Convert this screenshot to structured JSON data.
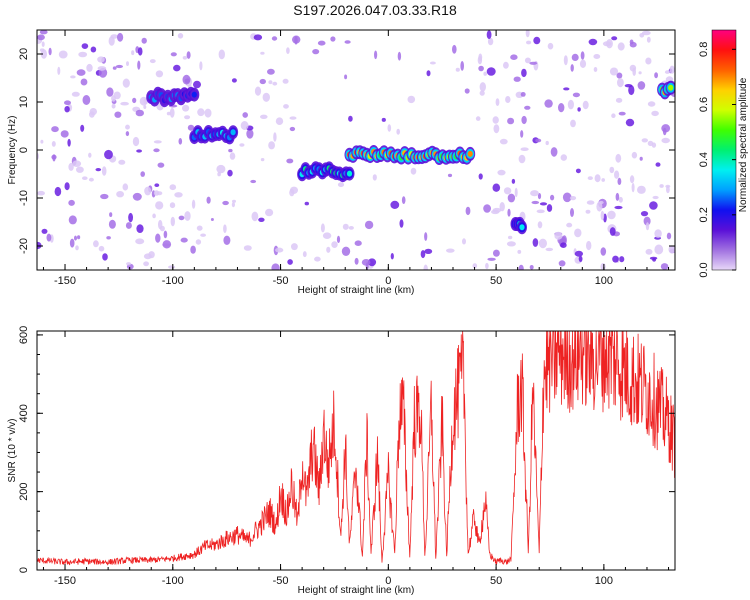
{
  "title": "S197.2026.047.03.33.R18",
  "chart_data": [
    {
      "type": "heatmap",
      "xlabel": "Height of straight line (km)",
      "ylabel": "Frequency (Hz)",
      "xlim": [
        -163,
        133
      ],
      "ylim": [
        -25,
        25
      ],
      "x_ticks": [
        -150,
        -100,
        -50,
        0,
        50,
        100
      ],
      "y_ticks": [
        -20,
        -10,
        0,
        10,
        20
      ],
      "colorbar": {
        "label": "Normalized spectral amplitude",
        "range": [
          0,
          0.87
        ],
        "ticks": [
          0.0,
          0.2,
          0.4,
          0.6,
          0.8
        ],
        "colormap": [
          "#e8d8f8",
          "#a070e0",
          "#5a10d8",
          "#1010f0",
          "#00a0ff",
          "#00f0f0",
          "#00f070",
          "#40ff00",
          "#d0ff00",
          "#ffd000",
          "#ff6000",
          "#ff1010",
          "#ff0080"
        ]
      },
      "features": [
        {
          "x0": -110,
          "x1": -90,
          "f": 11,
          "amp": 0.35
        },
        {
          "x0": -90,
          "x1": -72,
          "f": 3,
          "amp": 0.45
        },
        {
          "x0": -40,
          "x1": -18,
          "f": -4.5,
          "amp": 0.5
        },
        {
          "x0": -18,
          "x1": 38,
          "f": -1,
          "amp": 0.85
        },
        {
          "x0": 59,
          "x1": 62,
          "f": -16,
          "amp": 0.5
        },
        {
          "x0": 127,
          "x1": 131,
          "f": 12.5,
          "amp": 0.8
        }
      ]
    },
    {
      "type": "line",
      "xlabel": "Height of straight line (km)",
      "ylabel": "SNR (10 * v/v)",
      "xlim": [
        -163,
        133
      ],
      "ylim": [
        0,
        610
      ],
      "x_ticks": [
        -150,
        -100,
        -50,
        0,
        50,
        100
      ],
      "y_ticks": [
        0,
        200,
        400,
        600
      ],
      "color": "#ee2222",
      "series": [
        {
          "x": [
            -163,
            -150,
            -140,
            -130,
            -120,
            -110,
            -100,
            -90,
            -85,
            -80,
            -75,
            -70,
            -65,
            -60,
            -55,
            -52,
            -50,
            -47,
            -45,
            -42,
            -40,
            -38,
            -35,
            -32,
            -30,
            -28,
            -25,
            -22,
            -20,
            -18,
            -15,
            -12,
            -10,
            -8,
            -5,
            -3,
            0,
            3,
            5,
            7,
            10,
            12,
            15,
            17,
            20,
            22,
            25,
            27,
            30,
            32,
            35,
            37,
            40,
            42,
            45,
            47,
            50,
            52,
            55,
            57,
            60,
            62,
            65,
            67,
            70,
            72,
            75,
            80,
            85,
            90,
            95,
            100,
            105,
            110,
            115,
            120,
            125,
            130,
            133
          ],
          "y": [
            25,
            20,
            22,
            20,
            25,
            25,
            30,
            40,
            60,
            65,
            80,
            90,
            75,
            110,
            150,
            110,
            200,
            140,
            220,
            120,
            280,
            180,
            320,
            200,
            360,
            260,
            380,
            80,
            320,
            60,
            270,
            30,
            340,
            40,
            300,
            20,
            240,
            40,
            400,
            410,
            30,
            380,
            410,
            30,
            420,
            30,
            380,
            30,
            400,
            440,
            500,
            40,
            140,
            60,
            180,
            40,
            20,
            25,
            20,
            30,
            420,
            470,
            40,
            460,
            40,
            500,
            540,
            560,
            550,
            570,
            545,
            560,
            540,
            510,
            480,
            460,
            420,
            380,
            320
          ]
        }
      ]
    }
  ]
}
